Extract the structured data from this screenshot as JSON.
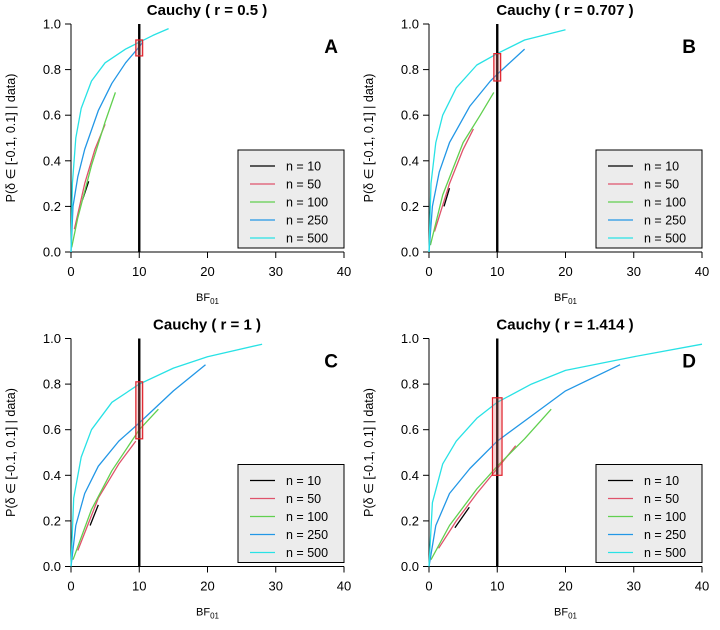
{
  "chart_data": [
    {
      "type": "line",
      "panel": "A",
      "title": "Cauchy ( r = 0.5 )",
      "xlabel": "BF",
      "xlabel_sub": "01",
      "ylabel": "P(δ ∈ [-0.1, 0.1] | data)",
      "xlim": [
        0,
        40
      ],
      "ylim": [
        0,
        1
      ],
      "xticks": [
        0,
        10,
        20,
        30,
        40
      ],
      "yticks": [
        "0.0",
        "0.2",
        "0.4",
        "0.6",
        "0.8",
        "1.0"
      ],
      "vline": 10,
      "highlight": {
        "x": [
          9.5,
          10.5
        ],
        "y": [
          0.86,
          0.93
        ]
      },
      "legend_position": "bottom-right",
      "series": [
        {
          "name": "n = 10",
          "color": "#000000",
          "points": [
            [
              1.7,
              0.23
            ],
            [
              2.6,
              0.31
            ]
          ]
        },
        {
          "name": "n = 50",
          "color": "#DF536B",
          "points": [
            [
              0.5,
              0.1
            ],
            [
              2,
              0.3
            ],
            [
              3.5,
              0.45
            ],
            [
              5,
              0.56
            ]
          ]
        },
        {
          "name": "n = 100",
          "color": "#61D04F",
          "points": [
            [
              0.1,
              0.02
            ],
            [
              1,
              0.15
            ],
            [
              3,
              0.38
            ],
            [
              5,
              0.57
            ],
            [
              6.5,
              0.7
            ]
          ]
        },
        {
          "name": "n = 250",
          "color": "#2297E6",
          "points": [
            [
              0,
              0
            ],
            [
              0.3,
              0.2
            ],
            [
              1,
              0.33
            ],
            [
              2,
              0.45
            ],
            [
              4,
              0.62
            ],
            [
              6,
              0.74
            ],
            [
              8,
              0.83
            ],
            [
              10,
              0.9
            ],
            [
              10.5,
              0.92
            ]
          ]
        },
        {
          "name": "n = 500",
          "color": "#28E2E5",
          "points": [
            [
              0,
              0
            ],
            [
              0.2,
              0.3
            ],
            [
              0.7,
              0.5
            ],
            [
              1.5,
              0.63
            ],
            [
              3,
              0.75
            ],
            [
              5,
              0.83
            ],
            [
              8,
              0.89
            ],
            [
              10,
              0.92
            ],
            [
              12,
              0.95
            ],
            [
              14.3,
              0.98
            ]
          ]
        }
      ]
    },
    {
      "type": "line",
      "panel": "B",
      "title": "Cauchy ( r = 0.707 )",
      "xlabel": "BF",
      "xlabel_sub": "01",
      "ylabel": "P(δ ∈ [-0.1, 0.1] | data)",
      "xlim": [
        0,
        40
      ],
      "ylim": [
        0,
        1
      ],
      "xticks": [
        0,
        10,
        20,
        30,
        40
      ],
      "yticks": [
        "0.0",
        "0.2",
        "0.4",
        "0.6",
        "0.8",
        "1.0"
      ],
      "vline": 10,
      "highlight": {
        "x": [
          9.5,
          10.5
        ],
        "y": [
          0.75,
          0.87
        ]
      },
      "legend_position": "bottom-right",
      "series": [
        {
          "name": "n = 10",
          "color": "#000000",
          "points": [
            [
              2.2,
              0.2
            ],
            [
              3,
              0.28
            ]
          ]
        },
        {
          "name": "n = 50",
          "color": "#DF536B",
          "points": [
            [
              0.8,
              0.09
            ],
            [
              3,
              0.3
            ],
            [
              5,
              0.45
            ],
            [
              6.5,
              0.54
            ]
          ]
        },
        {
          "name": "n = 100",
          "color": "#61D04F",
          "points": [
            [
              0.2,
              0.03
            ],
            [
              2,
              0.25
            ],
            [
              5,
              0.48
            ],
            [
              7.5,
              0.6
            ],
            [
              9.5,
              0.7
            ]
          ]
        },
        {
          "name": "n = 250",
          "color": "#2297E6",
          "points": [
            [
              0,
              0
            ],
            [
              0.5,
              0.2
            ],
            [
              1.5,
              0.35
            ],
            [
              3,
              0.48
            ],
            [
              6,
              0.64
            ],
            [
              9,
              0.75
            ],
            [
              10,
              0.78
            ],
            [
              14,
              0.89
            ]
          ]
        },
        {
          "name": "n = 500",
          "color": "#28E2E5",
          "points": [
            [
              0,
              0
            ],
            [
              0.3,
              0.3
            ],
            [
              1,
              0.48
            ],
            [
              2,
              0.6
            ],
            [
              4,
              0.72
            ],
            [
              7,
              0.82
            ],
            [
              10,
              0.87
            ],
            [
              14,
              0.93
            ],
            [
              20,
              0.975
            ]
          ]
        }
      ]
    },
    {
      "type": "line",
      "panel": "C",
      "title": "Cauchy ( r = 1 )",
      "xlabel": "BF",
      "xlabel_sub": "01",
      "ylabel": "P(δ ∈ [-0.1, 0.1] | data)",
      "xlim": [
        0,
        40
      ],
      "ylim": [
        0,
        1
      ],
      "xticks": [
        0,
        10,
        20,
        30,
        40
      ],
      "yticks": [
        "0.0",
        "0.2",
        "0.4",
        "0.6",
        "0.8",
        "1.0"
      ],
      "vline": 10,
      "highlight": {
        "x": [
          9.5,
          10.5
        ],
        "y": [
          0.56,
          0.81
        ]
      },
      "legend_position": "bottom-right",
      "series": [
        {
          "name": "n = 10",
          "color": "#000000",
          "points": [
            [
              2.8,
              0.18
            ],
            [
              4,
              0.27
            ]
          ]
        },
        {
          "name": "n = 50",
          "color": "#DF536B",
          "points": [
            [
              1,
              0.07
            ],
            [
              4,
              0.3
            ],
            [
              7,
              0.45
            ],
            [
              9.5,
              0.55
            ]
          ]
        },
        {
          "name": "n = 100",
          "color": "#61D04F",
          "points": [
            [
              0.3,
              0.03
            ],
            [
              3,
              0.25
            ],
            [
              6,
              0.42
            ],
            [
              10,
              0.6
            ],
            [
              12.8,
              0.69
            ]
          ]
        },
        {
          "name": "n = 250",
          "color": "#2297E6",
          "points": [
            [
              0,
              0
            ],
            [
              0.7,
              0.18
            ],
            [
              2,
              0.32
            ],
            [
              4,
              0.44
            ],
            [
              7,
              0.55
            ],
            [
              10,
              0.63
            ],
            [
              15,
              0.77
            ],
            [
              19.7,
              0.885
            ]
          ]
        },
        {
          "name": "n = 500",
          "color": "#28E2E5",
          "points": [
            [
              0,
              0
            ],
            [
              0.4,
              0.3
            ],
            [
              1.5,
              0.48
            ],
            [
              3,
              0.6
            ],
            [
              6,
              0.72
            ],
            [
              10,
              0.8
            ],
            [
              15,
              0.87
            ],
            [
              20,
              0.92
            ],
            [
              28,
              0.975
            ]
          ]
        }
      ]
    },
    {
      "type": "line",
      "panel": "D",
      "title": "Cauchy ( r = 1.414 )",
      "xlabel": "BF",
      "xlabel_sub": "01",
      "ylabel": "P(δ ∈ [-0.1, 0.1] | data)",
      "xlim": [
        0,
        40
      ],
      "ylim": [
        0,
        1
      ],
      "xticks": [
        0,
        10,
        20,
        30,
        40
      ],
      "yticks": [
        "0.0",
        "0.2",
        "0.4",
        "0.6",
        "0.8",
        "1.0"
      ],
      "vline": 10,
      "highlight": {
        "x": [
          9.3,
          10.7
        ],
        "y": [
          0.4,
          0.74
        ]
      },
      "legend_position": "bottom-right",
      "series": [
        {
          "name": "n = 10",
          "color": "#000000",
          "points": [
            [
              3.8,
              0.17
            ],
            [
              5.9,
              0.26
            ]
          ]
        },
        {
          "name": "n = 50",
          "color": "#DF536B",
          "points": [
            [
              1.4,
              0.08
            ],
            [
              4,
              0.2
            ],
            [
              7,
              0.32
            ],
            [
              10,
              0.43
            ],
            [
              12.7,
              0.53
            ]
          ]
        },
        {
          "name": "n = 100",
          "color": "#61D04F",
          "points": [
            [
              0.3,
              0.03
            ],
            [
              3,
              0.18
            ],
            [
              7,
              0.34
            ],
            [
              10,
              0.44
            ],
            [
              14,
              0.56
            ],
            [
              17.9,
              0.69
            ]
          ]
        },
        {
          "name": "n = 250",
          "color": "#2297E6",
          "points": [
            [
              0,
              0
            ],
            [
              1,
              0.18
            ],
            [
              3,
              0.32
            ],
            [
              6,
              0.43
            ],
            [
              10,
              0.55
            ],
            [
              15,
              0.66
            ],
            [
              20,
              0.77
            ],
            [
              28,
              0.885
            ]
          ]
        },
        {
          "name": "n = 500",
          "color": "#28E2E5",
          "points": [
            [
              0,
              0
            ],
            [
              0.5,
              0.28
            ],
            [
              2,
              0.45
            ],
            [
              4,
              0.55
            ],
            [
              7,
              0.65
            ],
            [
              10,
              0.72
            ],
            [
              15,
              0.8
            ],
            [
              20,
              0.86
            ],
            [
              30,
              0.92
            ],
            [
              40,
              0.975
            ]
          ]
        }
      ]
    }
  ]
}
